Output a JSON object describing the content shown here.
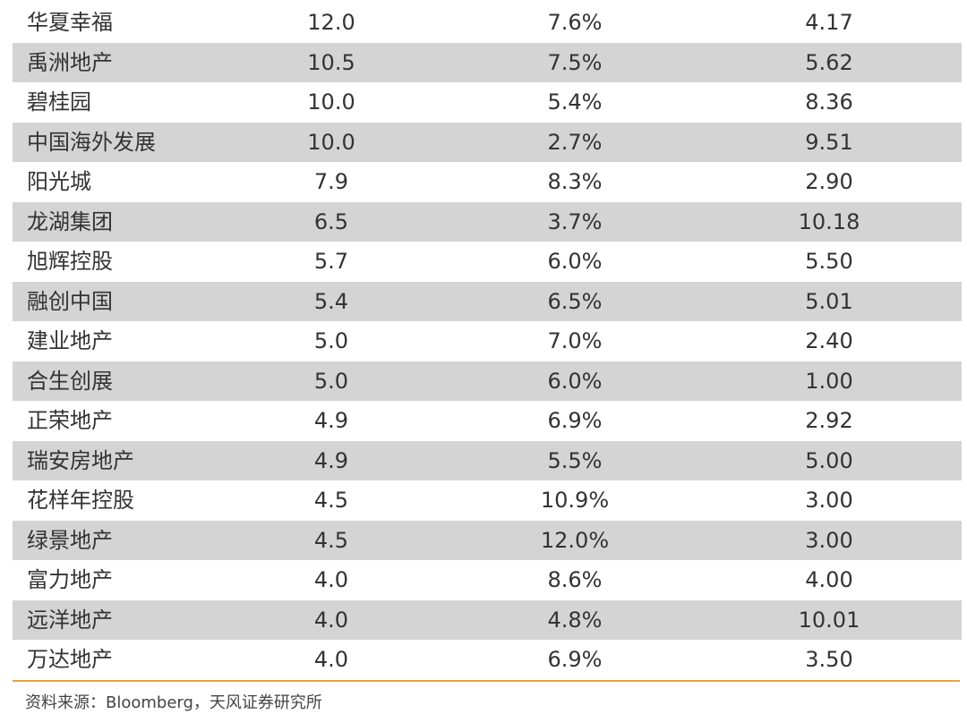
{
  "rows": [
    {
      "name": "华夏幸福",
      "v1": "12.0",
      "v2": "7.6%",
      "v3": "4.17"
    },
    {
      "name": "禹洲地产",
      "v1": "10.5",
      "v2": "7.5%",
      "v3": "5.62"
    },
    {
      "name": "碧桂园",
      "v1": "10.0",
      "v2": "5.4%",
      "v3": "8.36"
    },
    {
      "name": "中国海外发展",
      "v1": "10.0",
      "v2": "2.7%",
      "v3": "9.51"
    },
    {
      "name": "阳光城",
      "v1": "7.9",
      "v2": "8.3%",
      "v3": "2.90"
    },
    {
      "name": "龙湖集团",
      "v1": "6.5",
      "v2": "3.7%",
      "v3": "10.18"
    },
    {
      "name": "旭辉控股",
      "v1": "5.7",
      "v2": "6.0%",
      "v3": "5.50"
    },
    {
      "name": "融创中国",
      "v1": "5.4",
      "v2": "6.5%",
      "v3": "5.01"
    },
    {
      "name": "建业地产",
      "v1": "5.0",
      "v2": "7.0%",
      "v3": "2.40"
    },
    {
      "name": "合生创展",
      "v1": "5.0",
      "v2": "6.0%",
      "v3": "1.00"
    },
    {
      "name": "正荣地产",
      "v1": "4.9",
      "v2": "6.9%",
      "v3": "2.92"
    },
    {
      "name": "瑞安房地产",
      "v1": "4.9",
      "v2": "5.5%",
      "v3": "5.00"
    },
    {
      "name": "花样年控股",
      "v1": "4.5",
      "v2": "10.9%",
      "v3": "3.00"
    },
    {
      "name": "绿景地产",
      "v1": "4.5",
      "v2": "12.0%",
      "v3": "3.00"
    },
    {
      "name": "富力地产",
      "v1": "4.0",
      "v2": "8.6%",
      "v3": "4.00"
    },
    {
      "name": "远洋地产",
      "v1": "4.0",
      "v2": "4.8%",
      "v3": "10.01"
    },
    {
      "name": "万达地产",
      "v1": "4.0",
      "v2": "6.9%",
      "v3": "3.50"
    }
  ],
  "source_note": "资料来源：Bloomberg，天风证券研究所",
  "colors": {
    "row_shade": "#d4d4d4",
    "rule": "#e8a04c",
    "text": "#333333"
  }
}
